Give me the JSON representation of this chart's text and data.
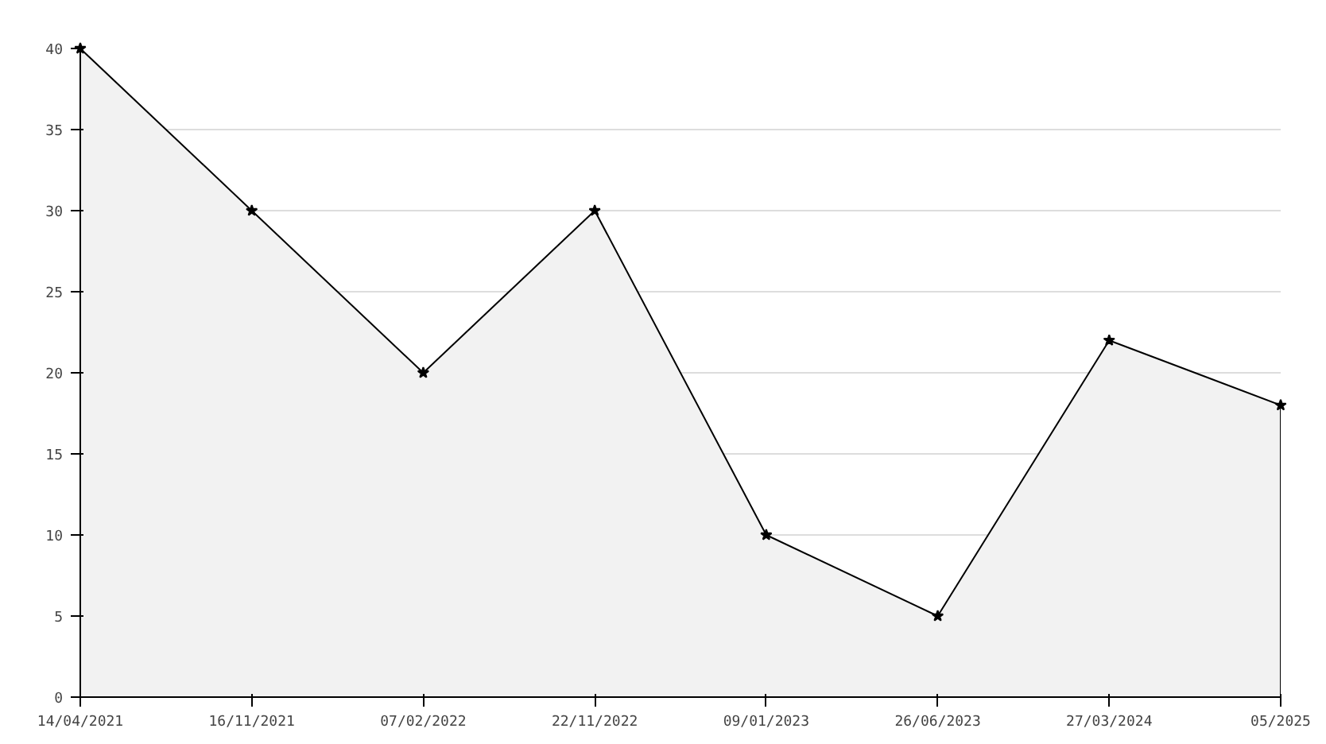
{
  "chart_data": {
    "type": "area",
    "categories": [
      "14/04/2021",
      "16/11/2021",
      "07/02/2022",
      "22/11/2022",
      "09/01/2023",
      "26/06/2023",
      "27/03/2024",
      "05/2025"
    ],
    "series": [
      {
        "color": "#000000",
        "values": [
          40,
          30,
          20,
          30,
          10,
          5,
          22,
          18
        ]
      }
    ],
    "ylim": [
      0,
      40
    ],
    "yticks": [
      0,
      5,
      10,
      15,
      20,
      25,
      30,
      35,
      40
    ],
    "grid": "y",
    "marker": "star",
    "line_style": "solid"
  }
}
